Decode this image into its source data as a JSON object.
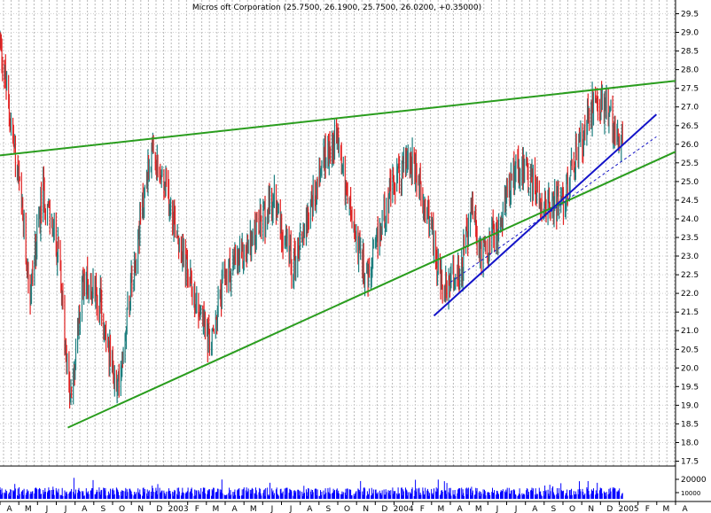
{
  "chart_data": {
    "type": "candlestick",
    "title": "Micros oft Corporation (25.7500, 26.1900, 25.7500, 26.0200, +0.35000)",
    "y_axis": {
      "position": "right",
      "ylim": [
        17.5,
        29.5
      ],
      "ticks": [
        "29.5",
        "29.0",
        "28.5",
        "28.0",
        "27.5",
        "27.0",
        "26.5",
        "26.0",
        "25.5",
        "25.0",
        "24.5",
        "24.0",
        "23.5",
        "23.0",
        "22.5",
        "22.0",
        "21.5",
        "21.0",
        "20.5",
        "20.0",
        "19.5",
        "19.0",
        "18.5",
        "18.0",
        "17.5"
      ]
    },
    "x_axis": {
      "ticks": [
        "A",
        "M",
        "J",
        "J",
        "A",
        "S",
        "O",
        "N",
        "D",
        "2003",
        "F",
        "M",
        "A",
        "M",
        "J",
        "J",
        "A",
        "S",
        "O",
        "N",
        "D",
        "2004",
        "F",
        "M",
        "A",
        "M",
        "J",
        "J",
        "A",
        "S",
        "O",
        "N",
        "D",
        "2005",
        "F",
        "M",
        "A"
      ],
      "range": [
        "2002-04",
        "2005-04"
      ]
    },
    "up_color": "#1e7f7f",
    "down_color": "#e02020",
    "price_waypoints": [
      {
        "date": "2002-04-01",
        "close": 28.8
      },
      {
        "date": "2002-05-01",
        "close": 25.0
      },
      {
        "date": "2002-05-20",
        "close": 22.0
      },
      {
        "date": "2002-06-10",
        "close": 24.8
      },
      {
        "date": "2002-07-05",
        "close": 23.0
      },
      {
        "date": "2002-07-24",
        "close": 19.0
      },
      {
        "date": "2002-08-15",
        "close": 22.5
      },
      {
        "date": "2002-09-10",
        "close": 21.8
      },
      {
        "date": "2002-10-08",
        "close": 19.3
      },
      {
        "date": "2002-11-01",
        "close": 22.5
      },
      {
        "date": "2002-12-01",
        "close": 25.7
      },
      {
        "date": "2003-01-02",
        "close": 24.5
      },
      {
        "date": "2003-02-01",
        "close": 22.4
      },
      {
        "date": "2003-03-10",
        "close": 20.6
      },
      {
        "date": "2003-04-01",
        "close": 22.5
      },
      {
        "date": "2003-05-01",
        "close": 23.0
      },
      {
        "date": "2003-06-20",
        "close": 24.5
      },
      {
        "date": "2003-07-20",
        "close": 22.7
      },
      {
        "date": "2003-09-10",
        "close": 25.7
      },
      {
        "date": "2003-10-01",
        "close": 26.2
      },
      {
        "date": "2003-10-25",
        "close": 23.8
      },
      {
        "date": "2003-11-20",
        "close": 22.3
      },
      {
        "date": "2003-12-20",
        "close": 24.5
      },
      {
        "date": "2004-01-25",
        "close": 25.7
      },
      {
        "date": "2004-03-01",
        "close": 23.8
      },
      {
        "date": "2004-03-20",
        "close": 21.9
      },
      {
        "date": "2004-04-20",
        "close": 22.8
      },
      {
        "date": "2004-05-05",
        "close": 24.2
      },
      {
        "date": "2004-05-20",
        "close": 23.0
      },
      {
        "date": "2004-06-20",
        "close": 23.8
      },
      {
        "date": "2004-07-15",
        "close": 25.5
      },
      {
        "date": "2004-08-10",
        "close": 25.0
      },
      {
        "date": "2004-09-01",
        "close": 24.4
      },
      {
        "date": "2004-10-01",
        "close": 24.5
      },
      {
        "date": "2004-10-25",
        "close": 25.8
      },
      {
        "date": "2004-11-15",
        "close": 26.9
      },
      {
        "date": "2004-12-01",
        "close": 27.1
      },
      {
        "date": "2004-12-20",
        "close": 26.6
      },
      {
        "date": "2005-01-05",
        "close": 25.9
      }
    ],
    "trendlines": [
      {
        "color": "#2a9d1e",
        "width": 2,
        "style": "solid",
        "from": {
          "date": "2002-04-01",
          "y": 25.7
        },
        "to": {
          "date": "2005-04-01",
          "y": 27.7
        }
      },
      {
        "color": "#2a9d1e",
        "width": 2,
        "style": "solid",
        "from": {
          "date": "2002-07-20",
          "y": 18.4
        },
        "to": {
          "date": "2005-04-01",
          "y": 25.8
        }
      },
      {
        "color": "#1414c8",
        "width": 2,
        "style": "solid",
        "from": {
          "date": "2004-03-05",
          "y": 21.4
        },
        "to": {
          "date": "2005-03-01",
          "y": 26.8
        }
      },
      {
        "color": "#1414c8",
        "width": 1,
        "style": "dashed",
        "from": {
          "date": "2004-04-01",
          "y": 22.3
        },
        "to": {
          "date": "2005-03-01",
          "y": 26.2
        }
      }
    ],
    "volume": {
      "color": "#0000ff",
      "ticks": [
        "20000",
        "10000"
      ]
    }
  }
}
